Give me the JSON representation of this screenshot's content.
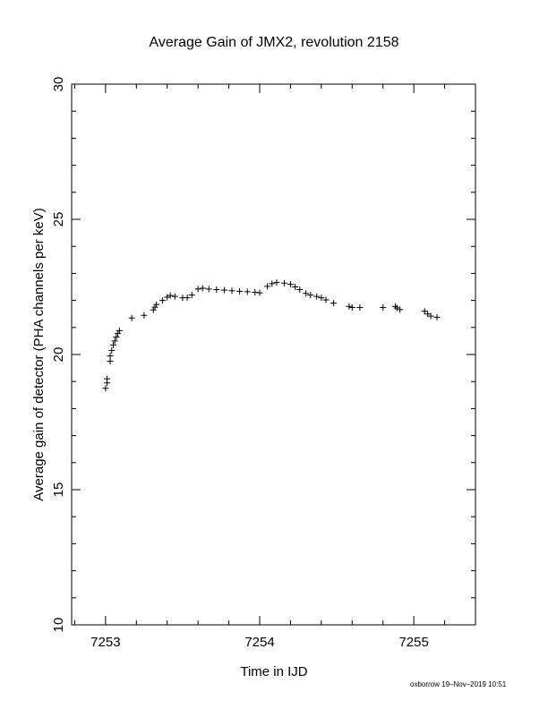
{
  "chart_data": {
    "type": "scatter",
    "title": "Average Gain of JMX2, revolution 2158",
    "xlabel": "Time in IJD",
    "ylabel": "Average gain of detector (PHA channels per keV)",
    "xlim": [
      7252.78,
      7255.4
    ],
    "ylim": [
      10,
      30
    ],
    "x_ticks": [
      7253,
      7254,
      7255
    ],
    "x_tick_labels": [
      "7253",
      "7254",
      "7255"
    ],
    "y_ticks": [
      10,
      15,
      20,
      25,
      30
    ],
    "y_tick_labels": [
      "10",
      "15",
      "20",
      "25",
      "30"
    ],
    "grid": false,
    "marker": "+",
    "marker_color": "#000000",
    "points": [
      {
        "x": 7253.0,
        "y": 18.75
      },
      {
        "x": 7253.01,
        "y": 18.95
      },
      {
        "x": 7253.01,
        "y": 19.1
      },
      {
        "x": 7253.03,
        "y": 19.75
      },
      {
        "x": 7253.03,
        "y": 19.95
      },
      {
        "x": 7253.04,
        "y": 20.15
      },
      {
        "x": 7253.05,
        "y": 20.35
      },
      {
        "x": 7253.06,
        "y": 20.5
      },
      {
        "x": 7253.07,
        "y": 20.65
      },
      {
        "x": 7253.08,
        "y": 20.78
      },
      {
        "x": 7253.09,
        "y": 20.88
      },
      {
        "x": 7253.17,
        "y": 21.35
      },
      {
        "x": 7253.25,
        "y": 21.45
      },
      {
        "x": 7253.31,
        "y": 21.65
      },
      {
        "x": 7253.32,
        "y": 21.75
      },
      {
        "x": 7253.33,
        "y": 21.85
      },
      {
        "x": 7253.37,
        "y": 22.0
      },
      {
        "x": 7253.4,
        "y": 22.12
      },
      {
        "x": 7253.42,
        "y": 22.18
      },
      {
        "x": 7253.45,
        "y": 22.15
      },
      {
        "x": 7253.5,
        "y": 22.1
      },
      {
        "x": 7253.53,
        "y": 22.1
      },
      {
        "x": 7253.56,
        "y": 22.2
      },
      {
        "x": 7253.6,
        "y": 22.42
      },
      {
        "x": 7253.63,
        "y": 22.45
      },
      {
        "x": 7253.67,
        "y": 22.42
      },
      {
        "x": 7253.72,
        "y": 22.4
      },
      {
        "x": 7253.77,
        "y": 22.38
      },
      {
        "x": 7253.82,
        "y": 22.36
      },
      {
        "x": 7253.87,
        "y": 22.34
      },
      {
        "x": 7253.92,
        "y": 22.32
      },
      {
        "x": 7253.97,
        "y": 22.3
      },
      {
        "x": 7254.0,
        "y": 22.28
      },
      {
        "x": 7254.05,
        "y": 22.52
      },
      {
        "x": 7254.08,
        "y": 22.62
      },
      {
        "x": 7254.11,
        "y": 22.66
      },
      {
        "x": 7254.16,
        "y": 22.64
      },
      {
        "x": 7254.2,
        "y": 22.6
      },
      {
        "x": 7254.23,
        "y": 22.5
      },
      {
        "x": 7254.26,
        "y": 22.4
      },
      {
        "x": 7254.3,
        "y": 22.26
      },
      {
        "x": 7254.33,
        "y": 22.2
      },
      {
        "x": 7254.37,
        "y": 22.15
      },
      {
        "x": 7254.4,
        "y": 22.1
      },
      {
        "x": 7254.43,
        "y": 22.02
      },
      {
        "x": 7254.48,
        "y": 21.9
      },
      {
        "x": 7254.58,
        "y": 21.78
      },
      {
        "x": 7254.6,
        "y": 21.74
      },
      {
        "x": 7254.65,
        "y": 21.74
      },
      {
        "x": 7254.8,
        "y": 21.74
      },
      {
        "x": 7254.88,
        "y": 21.78
      },
      {
        "x": 7254.89,
        "y": 21.72
      },
      {
        "x": 7254.91,
        "y": 21.66
      },
      {
        "x": 7255.07,
        "y": 21.6
      },
      {
        "x": 7255.09,
        "y": 21.5
      },
      {
        "x": 7255.11,
        "y": 21.42
      },
      {
        "x": 7255.15,
        "y": 21.38
      }
    ]
  },
  "footer": "oxborrow 19–Nov–2019 10:51"
}
